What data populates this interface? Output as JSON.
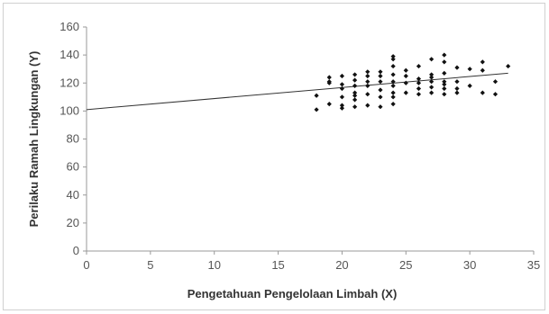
{
  "chart_data": {
    "type": "scatter",
    "title": "",
    "xlabel": "Pengetahuan Pengelolaan Limbah (X)",
    "ylabel": "Perilaku Ramah Lingkungan (Y)",
    "xlim": [
      0,
      35
    ],
    "ylim": [
      0,
      160
    ],
    "x_ticks": [
      0,
      5,
      10,
      15,
      20,
      25,
      30,
      35
    ],
    "y_ticks": [
      0,
      20,
      40,
      60,
      80,
      100,
      120,
      140,
      160
    ],
    "grid": false,
    "legend": "none",
    "colors": {
      "points": "#111111",
      "trendline": "#333333",
      "axis": "#999999"
    },
    "series": [
      {
        "points": [
          [
            18,
            101
          ],
          [
            18,
            111
          ],
          [
            19,
            105
          ],
          [
            19,
            120
          ],
          [
            19,
            124
          ],
          [
            19,
            121
          ],
          [
            20,
            102
          ],
          [
            20,
            104
          ],
          [
            20,
            110
          ],
          [
            20,
            116
          ],
          [
            20,
            119
          ],
          [
            20,
            125
          ],
          [
            21,
            103
          ],
          [
            21,
            108
          ],
          [
            21,
            111
          ],
          [
            21,
            113
          ],
          [
            21,
            118
          ],
          [
            21,
            122
          ],
          [
            21,
            126
          ],
          [
            22,
            104
          ],
          [
            22,
            112
          ],
          [
            22,
            118
          ],
          [
            22,
            121
          ],
          [
            22,
            125
          ],
          [
            22,
            128
          ],
          [
            23,
            103
          ],
          [
            23,
            110
          ],
          [
            23,
            115
          ],
          [
            23,
            121
          ],
          [
            23,
            125
          ],
          [
            23,
            128
          ],
          [
            24,
            105
          ],
          [
            24,
            110
          ],
          [
            24,
            113
          ],
          [
            24,
            118
          ],
          [
            24,
            121
          ],
          [
            24,
            126
          ],
          [
            24,
            132
          ],
          [
            24,
            137
          ],
          [
            24,
            139
          ],
          [
            25,
            113
          ],
          [
            25,
            120
          ],
          [
            25,
            125
          ],
          [
            25,
            129
          ],
          [
            26,
            112
          ],
          [
            26,
            116
          ],
          [
            26,
            120
          ],
          [
            26,
            123
          ],
          [
            26,
            132
          ],
          [
            27,
            113
          ],
          [
            27,
            117
          ],
          [
            27,
            121
          ],
          [
            27,
            124
          ],
          [
            27,
            126
          ],
          [
            27,
            137
          ],
          [
            28,
            112
          ],
          [
            28,
            116
          ],
          [
            28,
            119
          ],
          [
            28,
            121
          ],
          [
            28,
            127
          ],
          [
            28,
            135
          ],
          [
            28,
            140
          ],
          [
            29,
            113
          ],
          [
            29,
            116
          ],
          [
            29,
            121
          ],
          [
            29,
            131
          ],
          [
            30,
            118
          ],
          [
            30,
            130
          ],
          [
            31,
            113
          ],
          [
            31,
            129
          ],
          [
            31,
            135
          ],
          [
            32,
            112
          ],
          [
            32,
            121
          ],
          [
            33,
            132
          ]
        ]
      }
    ],
    "trendline": {
      "x": [
        0,
        33
      ],
      "y": [
        101,
        127
      ]
    }
  }
}
